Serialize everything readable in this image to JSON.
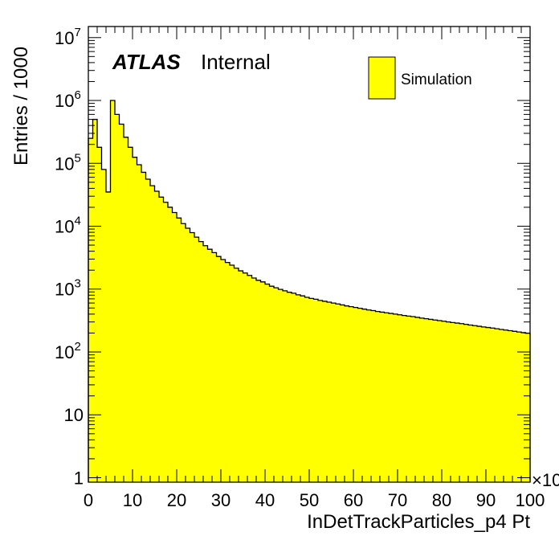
{
  "chart_data": {
    "type": "bar",
    "style": "histogram",
    "title": "",
    "xlabel": "InDetTrackParticles_p4 Pt",
    "ylabel": "Entries / 1000",
    "x_exponent_label": "×10",
    "xlim": [
      0,
      100
    ],
    "ylim": [
      0.85,
      15000000
    ],
    "yscale": "log",
    "grid": false,
    "fill_color": "#ffff00",
    "line_color": "#000000",
    "legend": {
      "position": "top-right",
      "entries": [
        "Simulation"
      ]
    },
    "annotations": {
      "experiment": "ATLAS",
      "status": "Internal"
    },
    "x_ticks": [
      "0",
      "10",
      "20",
      "30",
      "40",
      "50",
      "60",
      "70",
      "80",
      "90",
      "100"
    ],
    "y_ticks": [
      {
        "base": "1",
        "exp": ""
      },
      {
        "base": "10",
        "exp": ""
      },
      {
        "base": "10",
        "exp": "2"
      },
      {
        "base": "10",
        "exp": "3"
      },
      {
        "base": "10",
        "exp": "4"
      },
      {
        "base": "10",
        "exp": "5"
      },
      {
        "base": "10",
        "exp": "6"
      },
      {
        "base": "10",
        "exp": "7"
      }
    ],
    "bin_width": 1,
    "bin_start": 0,
    "values": [
      250000,
      500000,
      180000,
      80000,
      35000,
      1000000,
      600000,
      420000,
      260000,
      180000,
      125000,
      95000,
      72000,
      56000,
      44000,
      36000,
      29000,
      24000,
      20000,
      16500,
      13500,
      11000,
      9300,
      7900,
      6700,
      5700,
      4900,
      4300,
      3800,
      3300,
      2950,
      2650,
      2400,
      2150,
      1950,
      1800,
      1650,
      1500,
      1380,
      1300,
      1200,
      1110,
      1050,
      990,
      940,
      890,
      860,
      810,
      780,
      740,
      710,
      690,
      660,
      640,
      620,
      600,
      580,
      560,
      540,
      525,
      510,
      495,
      480,
      465,
      455,
      440,
      430,
      420,
      410,
      400,
      390,
      380,
      372,
      365,
      355,
      345,
      338,
      330,
      322,
      315,
      308,
      300,
      294,
      288,
      282,
      275,
      268,
      262,
      256,
      250,
      245,
      240,
      234,
      228,
      223,
      218,
      213,
      208,
      203,
      198
    ]
  }
}
